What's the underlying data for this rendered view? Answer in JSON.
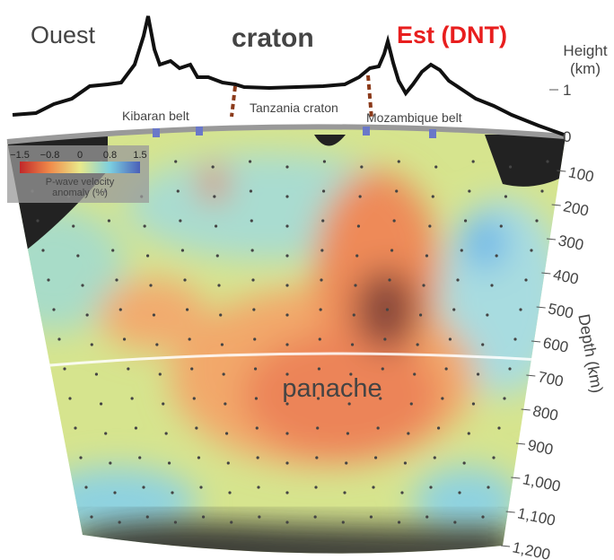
{
  "header": {
    "left": "Ouest",
    "center": "craton",
    "right": "Est (DNT)"
  },
  "height_axis": {
    "label": "Height\n(km)",
    "ticks": [
      "1",
      "0"
    ]
  },
  "regions": [
    "Kibaran belt",
    "Tanzania craton",
    "Mozambique belt"
  ],
  "colorbar": {
    "ticks": [
      "−1.5",
      "−0.8",
      "0",
      "0.8",
      "1.5"
    ],
    "label": "P-wave velocity\nanomaly (%)"
  },
  "depth_axis": {
    "label": "Depth (km)",
    "ticks": [
      "100",
      "200",
      "300",
      "400",
      "500",
      "600",
      "700",
      "800",
      "900",
      "1,000",
      "1,100",
      "1,200"
    ]
  },
  "annotation": "panache"
}
